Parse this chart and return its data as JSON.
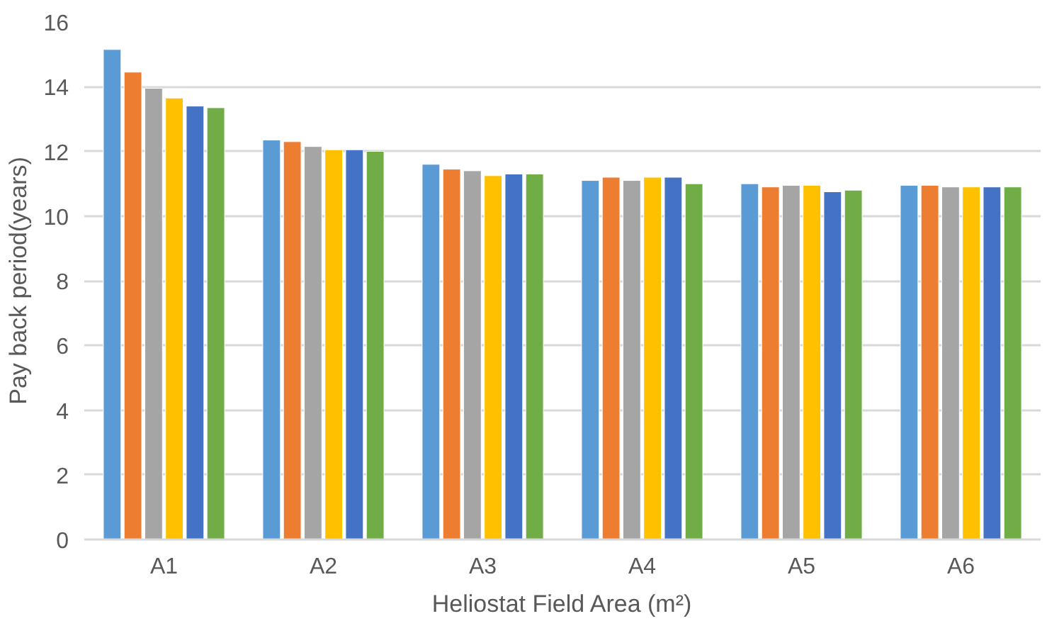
{
  "chart_data": {
    "type": "bar",
    "xlabel": "Heliostat Field Area (m²)",
    "ylabel": "Pay back period(years)",
    "categories": [
      "A1",
      "A2",
      "A3",
      "A4",
      "A5",
      "A6"
    ],
    "series": [
      {
        "color": "#5b9bd5",
        "values": [
          15.15,
          12.35,
          11.6,
          11.1,
          11.0,
          10.95
        ]
      },
      {
        "color": "#ed7d31",
        "values": [
          14.45,
          12.3,
          11.45,
          11.2,
          10.9,
          10.95
        ]
      },
      {
        "color": "#a5a5a5",
        "values": [
          13.95,
          12.15,
          11.4,
          11.1,
          10.95,
          10.9
        ]
      },
      {
        "color": "#ffc000",
        "values": [
          13.65,
          12.05,
          11.25,
          11.2,
          10.95,
          10.9
        ]
      },
      {
        "color": "#4472c4",
        "values": [
          13.4,
          12.05,
          11.3,
          11.2,
          10.75,
          10.9
        ]
      },
      {
        "color": "#70ad47",
        "values": [
          13.35,
          12.0,
          11.3,
          11.0,
          10.8,
          10.9
        ]
      }
    ],
    "ylim": [
      0,
      16
    ],
    "yticks": [
      0,
      2,
      4,
      6,
      8,
      10,
      12,
      14,
      16
    ],
    "grid": "y"
  }
}
